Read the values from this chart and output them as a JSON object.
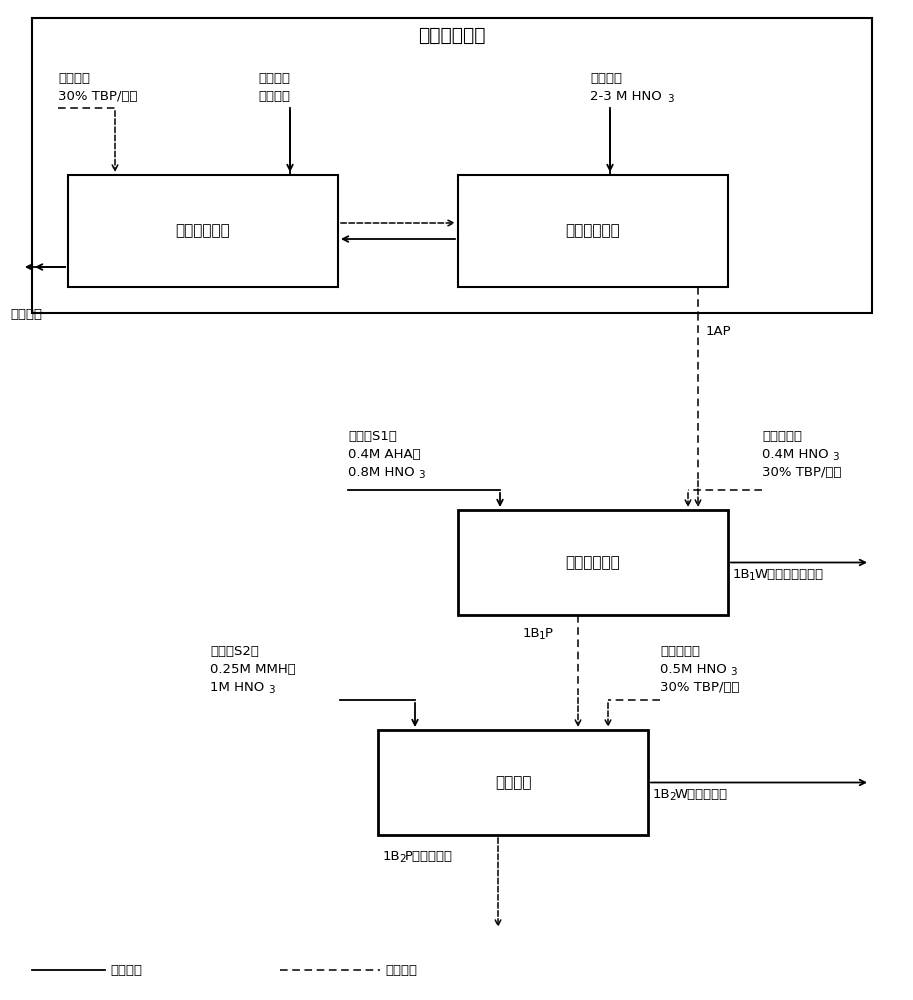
{
  "title": "共去污萃取器",
  "box1_label": "共去污萃取段",
  "box2_label": "共去污洗涤段",
  "box3_label": "锌、钚反萃槽",
  "box4_label": "锝反萃槽",
  "legend_solid": "水相液流",
  "legend_dashed": "油相液流",
  "ann_extract1_l1": "萃取剂：",
  "ann_extract1_l2": "30% TBP/煤油",
  "ann_extract2_l1": "乏燃料硝",
  "ann_extract2_l2": "酸溶解液",
  "ann_scrub_l1": "洗涤剂：",
  "ann_scrub_l2": "2-3 M HNO",
  "ann_scrub_l2_sub": "3",
  "ann_raf": "高放射液",
  "ann_1AP": "1AP",
  "ann_S1_l1": "反萃剂S1：",
  "ann_S1_l2": "0.4M AHA，",
  "ann_S1_l3": "0.8M HNO",
  "ann_S1_l3_sub": "3",
  "ann_umake1_l1": "铀补萃剂：",
  "ann_umake1_l2": "0.4M HNO",
  "ann_umake1_l2_sub": "3",
  "ann_umake1_l3": "30% TBP/煤油",
  "ann_1B1W_l1": "1B",
  "ann_1B1W_l1_sub": "1",
  "ann_1B1W_l2": "W：锌、钚产品流",
  "ann_1B1P_l1": "1B",
  "ann_1B1P_l1_sub": "1",
  "ann_1B1P_l2": "P",
  "ann_S2_l1": "反萃剂S2：",
  "ann_S2_l2": "0.25M MMH，",
  "ann_S2_l3": "1M HNO",
  "ann_S2_l3_sub": "3",
  "ann_umake2_l1": "铀补萃剂：",
  "ann_umake2_l2": "0.5M HNO",
  "ann_umake2_l2_sub": "3",
  "ann_umake2_l3": "30% TBP/煤油",
  "ann_1B2W_l1": "1B",
  "ann_1B2W_l1_sub": "2",
  "ann_1B2W_l2": "W：锝产品流",
  "ann_1B2P_l1": "1B",
  "ann_1B2P_l1_sub": "2",
  "ann_1B2P_l2": "P：铀产品流",
  "colors": {
    "solid_line": "#000000",
    "dashed_line": "#000000",
    "box_edge": "#000000",
    "box_fill": "#ffffff",
    "text": "#000000",
    "bg": "#ffffff"
  }
}
